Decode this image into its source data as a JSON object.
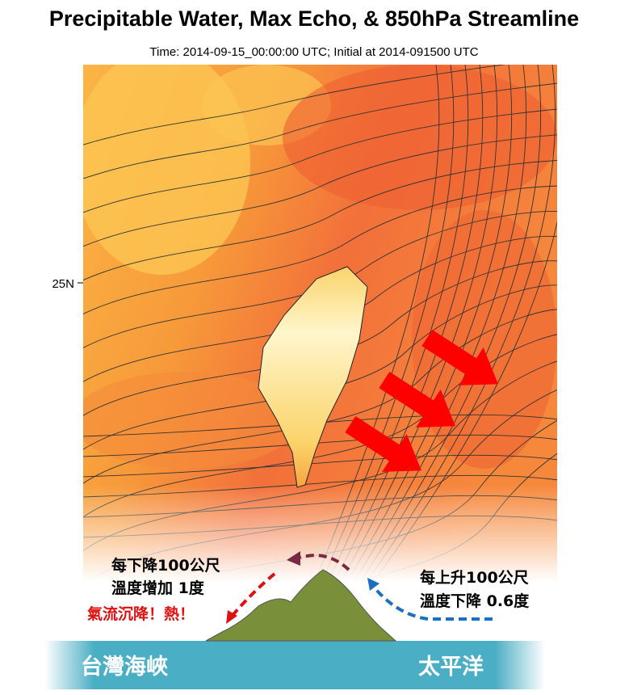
{
  "header": {
    "title": "Precipitable Water, Max Echo, & 850hPa Streamline",
    "subtitle": "Time: 2014-09-15_00:00:00 UTC; Initial at 2014-091500 UTC"
  },
  "map": {
    "lat_label": "25N"
  },
  "annotations": {
    "descent_line1": "每下降100公尺",
    "descent_line2": "溫度增加 1度",
    "descent_note": "氣流沉降！熱！",
    "ascent_line1": "每上升100公尺",
    "ascent_line2": "溫度下降 0.6度"
  },
  "labels": {
    "strait": "台灣海峽",
    "ocean": "太平洋"
  }
}
